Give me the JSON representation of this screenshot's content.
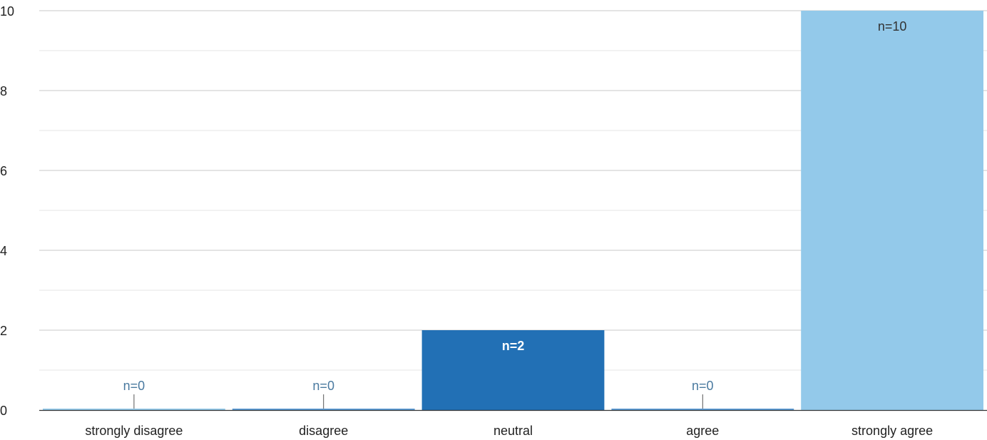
{
  "chart_data": {
    "type": "bar",
    "categories": [
      "strongly disagree",
      "disagree",
      "neutral",
      "agree",
      "strongly agree"
    ],
    "values": [
      0,
      0,
      2,
      0,
      10
    ],
    "data_labels": [
      "n=0",
      "n=0",
      "n=2",
      "n=0",
      "n=10"
    ],
    "bar_colors": [
      "#93c9ea",
      "#5b9bd5",
      "#2270b5",
      "#5b9bd5",
      "#93c9ea"
    ],
    "label_colors": [
      "#4a7aa0",
      "#4a7aa0",
      "#ffffff",
      "#4a7aa0",
      "#333333"
    ],
    "title": "",
    "xlabel": "",
    "ylabel": "",
    "ylim": [
      0,
      10
    ],
    "yticks": [
      0,
      2,
      4,
      6,
      8,
      10
    ],
    "minor_yticks": [
      1,
      3,
      5,
      7,
      9
    ],
    "grid": true,
    "legend": "none"
  }
}
